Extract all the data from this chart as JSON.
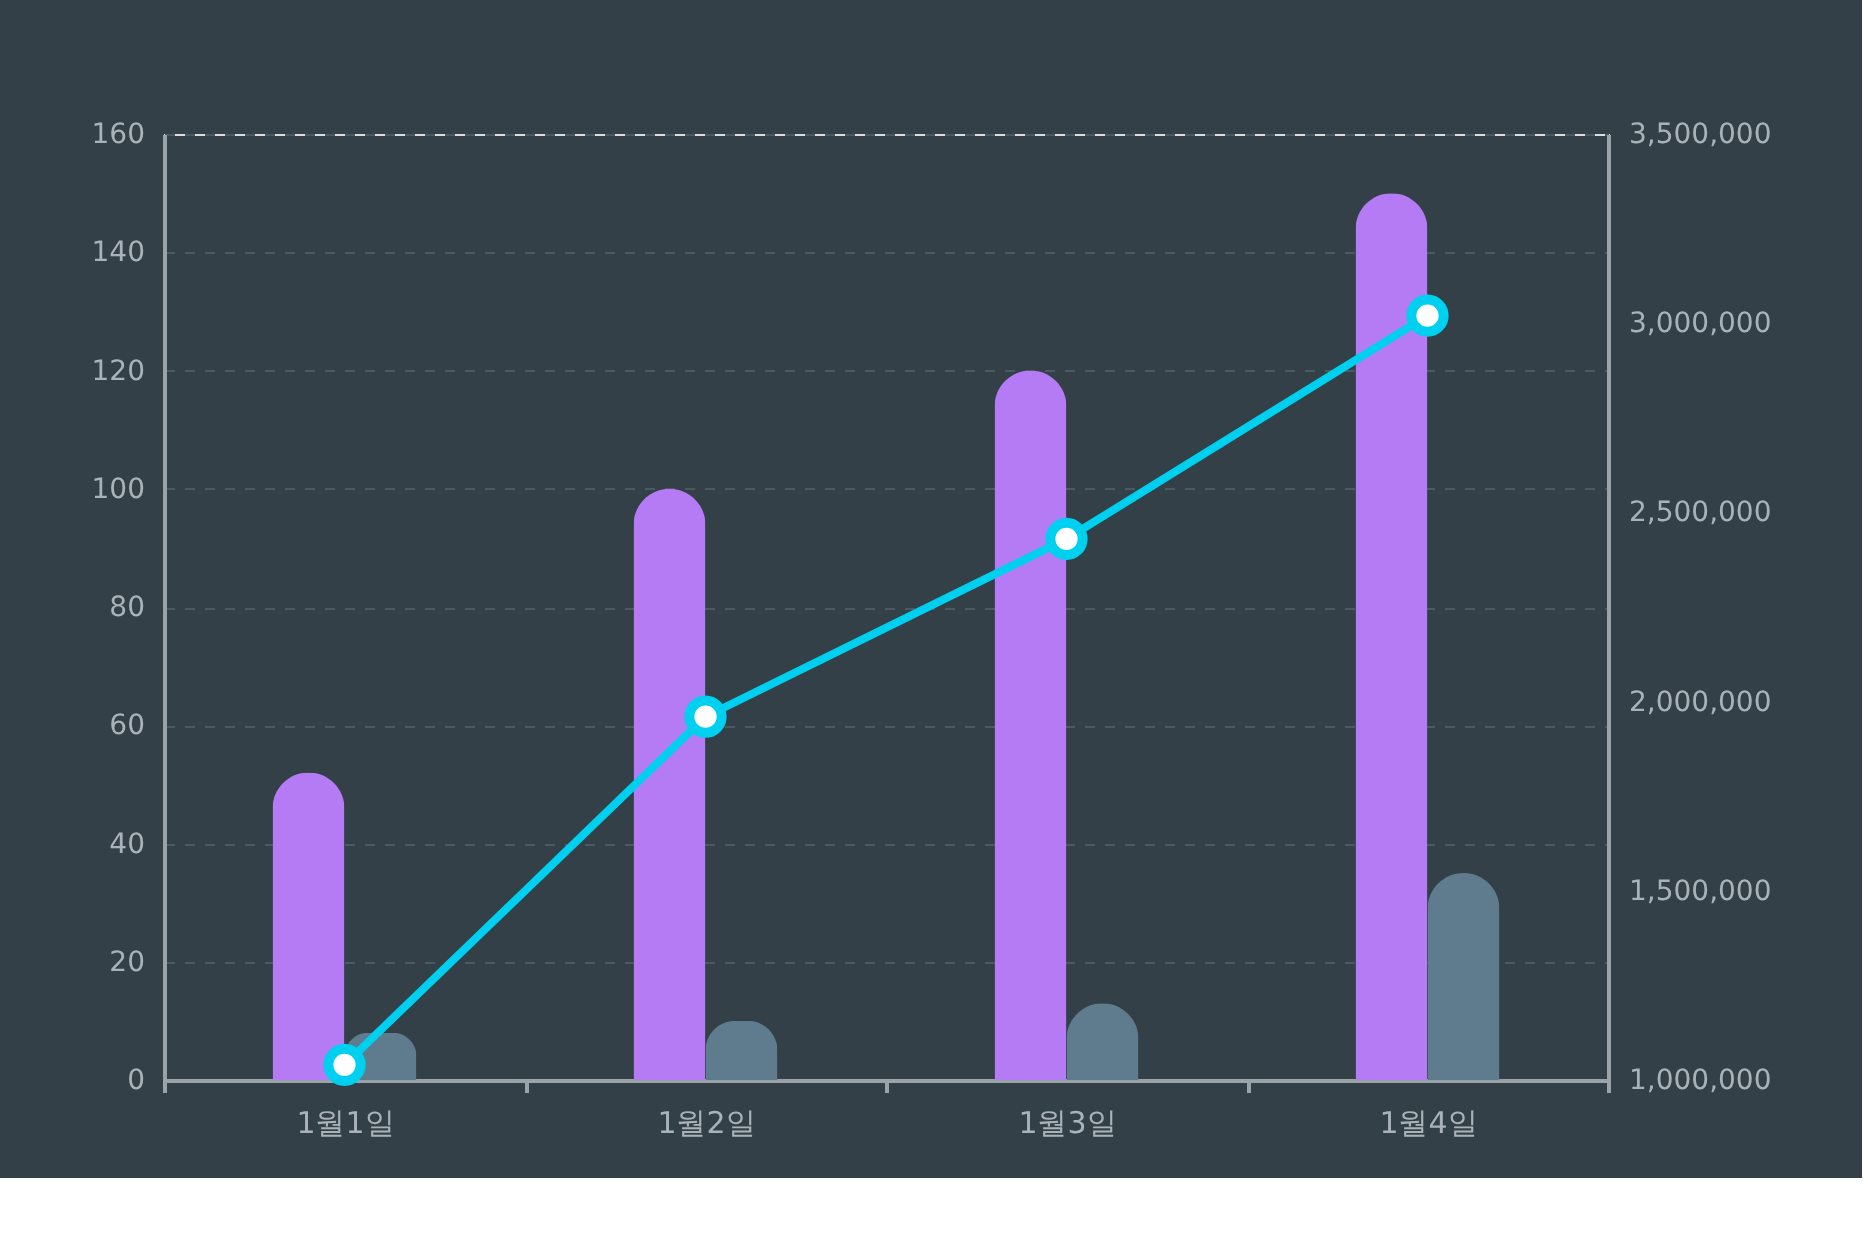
{
  "chart_data": {
    "type": "bar",
    "categories": [
      "1월1일",
      "1월2일",
      "1월3일",
      "1월4일"
    ],
    "series": [
      {
        "color": "#b57bf5",
        "values": [
          52,
          100,
          120,
          150
        ]
      },
      {
        "color": "#5f7b8e",
        "values": [
          8,
          10,
          13,
          35
        ]
      },
      {
        "type": "line",
        "axis": "y2",
        "color": "#00d0f0",
        "values": [
          1040000,
          1960000,
          2430000,
          3020000
        ]
      }
    ],
    "ylim": [
      0,
      160
    ],
    "yticks": [
      0,
      20,
      40,
      60,
      80,
      100,
      120,
      140,
      160
    ],
    "y2lim": [
      1000000,
      3500000
    ],
    "y2ticks": [
      {
        "value": 1000000,
        "label": "1,000,000"
      },
      {
        "value": 1500000,
        "label": "1,500,000"
      },
      {
        "value": 2000000,
        "label": "2,000,000"
      },
      {
        "value": 2500000,
        "label": "2,500,000"
      },
      {
        "value": 3000000,
        "label": "3,000,000"
      },
      {
        "value": 3500000,
        "label": "3,500,000"
      }
    ],
    "grid": "y",
    "marker": "circle",
    "line_style": "solid"
  }
}
